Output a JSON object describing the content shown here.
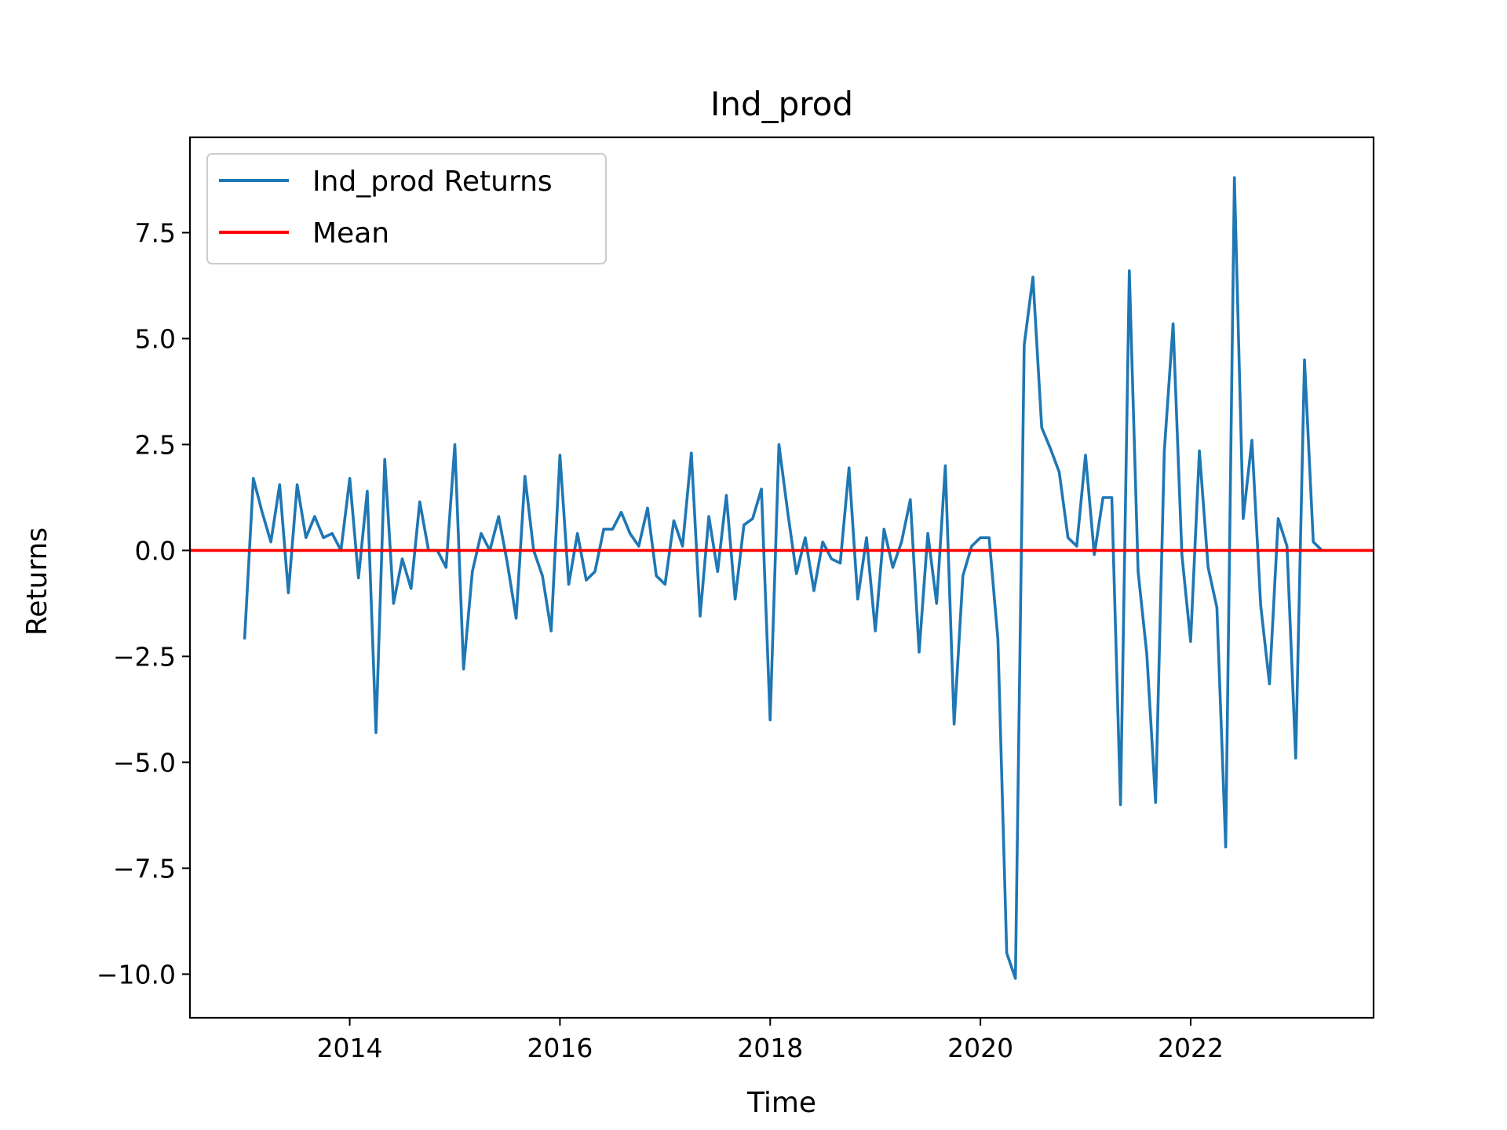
{
  "chart_data": {
    "type": "line",
    "title": "Ind_prod",
    "xlabel": "Time",
    "ylabel": "Returns",
    "xlim": [
      2012.48,
      2023.74
    ],
    "ylim": [
      -11.03,
      9.75
    ],
    "x_ticks": [
      2014,
      2016,
      2018,
      2020,
      2022
    ],
    "x_tick_labels": [
      "2014",
      "2016",
      "2018",
      "2020",
      "2022"
    ],
    "y_ticks": [
      7.5,
      5.0,
      2.5,
      0.0,
      -2.5,
      -5.0,
      -7.5,
      -10.0
    ],
    "y_tick_labels": [
      "7.5",
      "5.0",
      "2.5",
      "0.0",
      "−2.5",
      "−5.0",
      "−7.5",
      "−10.0"
    ],
    "grid": false,
    "legend": {
      "position": "upper-left",
      "entries": [
        "Ind_prod Returns",
        "Mean"
      ]
    },
    "x_start": 2013.0,
    "x_step": 0.08333,
    "series": [
      {
        "name": "Ind_prod Returns",
        "color": "#1f77b4",
        "values": [
          -2.1,
          1.7,
          0.9,
          0.2,
          1.55,
          -1.0,
          1.55,
          0.3,
          0.8,
          0.3,
          0.4,
          0.0,
          1.7,
          -0.65,
          1.4,
          -4.3,
          2.15,
          -1.25,
          -0.2,
          -0.9,
          1.15,
          0.0,
          0.0,
          -0.4,
          2.5,
          -2.8,
          -0.5,
          0.4,
          0.0,
          0.8,
          -0.3,
          -1.6,
          1.75,
          0.0,
          -0.6,
          -1.9,
          2.25,
          -0.8,
          0.4,
          -0.7,
          -0.5,
          0.5,
          0.5,
          0.9,
          0.4,
          0.1,
          1.0,
          -0.6,
          -0.8,
          0.7,
          0.1,
          2.3,
          -1.55,
          0.8,
          -0.5,
          1.3,
          -1.15,
          0.6,
          0.75,
          1.45,
          -4.0,
          2.5,
          0.9,
          -0.55,
          0.3,
          -0.95,
          0.2,
          -0.2,
          -0.3,
          1.95,
          -1.15,
          0.3,
          -1.9,
          0.5,
          -0.4,
          0.2,
          1.2,
          -2.4,
          0.4,
          -1.25,
          2.0,
          -4.1,
          -0.6,
          0.1,
          0.3,
          0.3,
          -2.1,
          -9.5,
          -10.1,
          4.85,
          6.45,
          2.9,
          2.4,
          1.85,
          0.3,
          0.1,
          2.25,
          -0.1,
          1.25,
          1.25,
          -6.0,
          6.6,
          -0.5,
          -2.45,
          -5.95,
          2.35,
          5.35,
          -0.1,
          -2.15,
          2.35,
          -0.4,
          -1.35,
          -7.0,
          8.8,
          0.75,
          2.6,
          -1.3,
          -3.15,
          0.75,
          0.1,
          -4.9,
          4.5,
          0.2,
          0.0
        ]
      },
      {
        "name": "Mean",
        "color": "#ff0000",
        "values": [
          0.0
        ]
      }
    ]
  }
}
